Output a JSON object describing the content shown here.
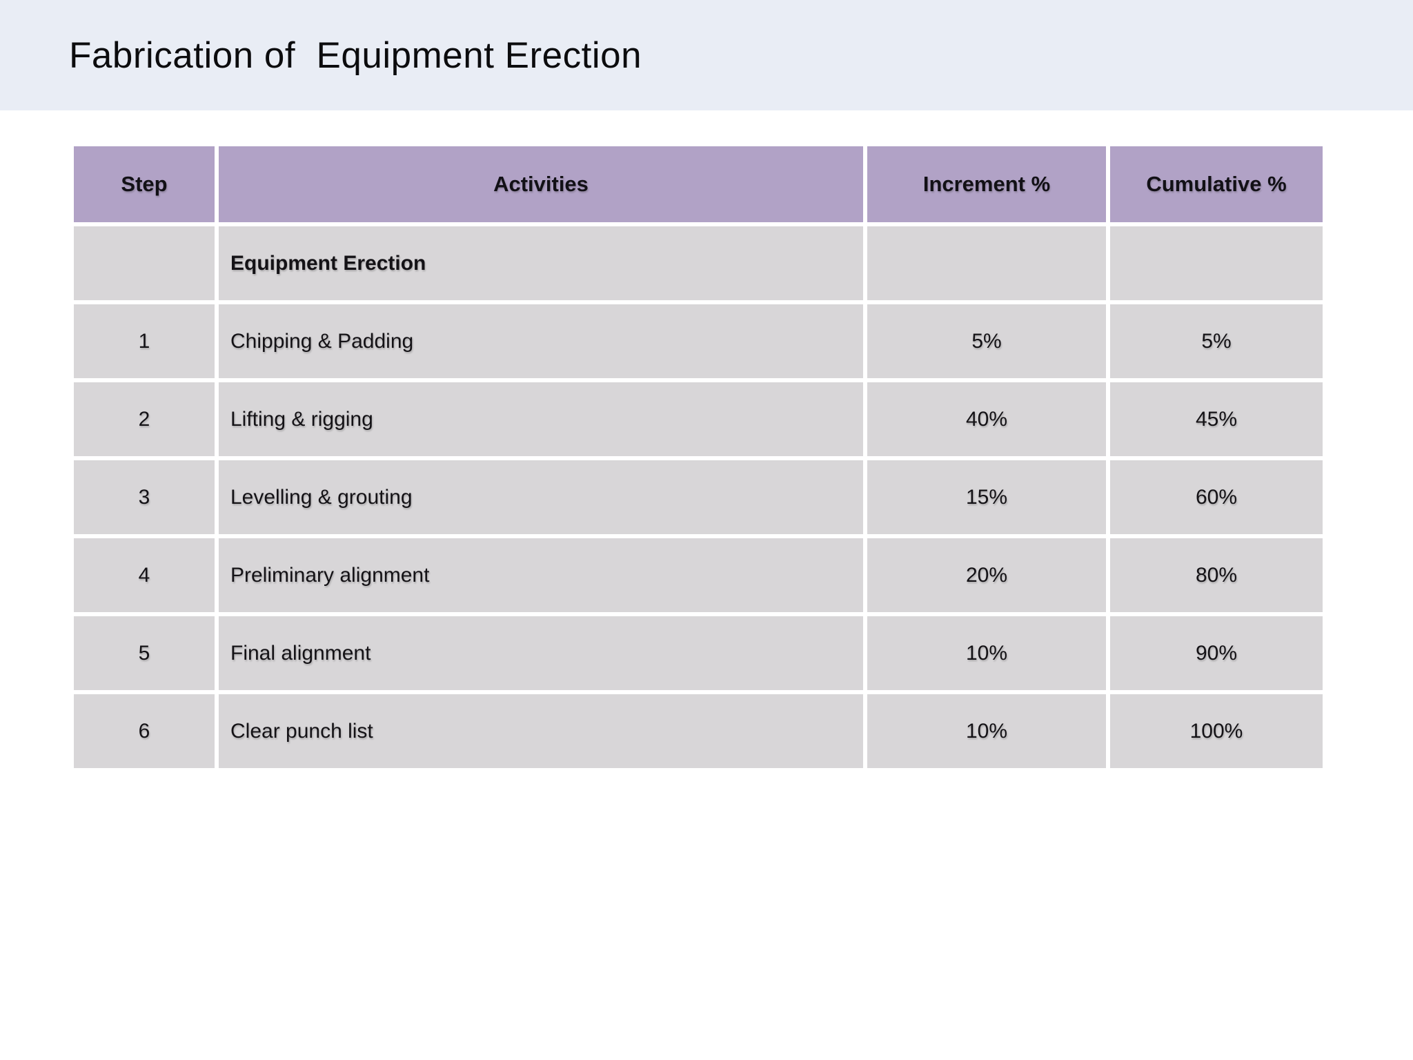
{
  "title": "Fabrication of  Equipment Erection",
  "colors": {
    "title_band_bg": "#e9edf5",
    "table_header_bg": "#b1a2c6",
    "table_row_bg": "#d8d6d8",
    "page_bg": "#ffffff",
    "text": "#141216"
  },
  "table": {
    "headers": [
      "Step",
      "Activities",
      "Increment %",
      "Cumulative %"
    ],
    "rows": [
      {
        "step": "",
        "activity": "Equipment Erection",
        "activity_bold": true,
        "increment": "",
        "cumulative": ""
      },
      {
        "step": "1",
        "activity": "Chipping & Padding",
        "activity_bold": false,
        "increment": "5%",
        "cumulative": "5%"
      },
      {
        "step": "2",
        "activity": "Lifting & rigging",
        "activity_bold": false,
        "increment": "40%",
        "cumulative": "45%"
      },
      {
        "step": "3",
        "activity": "Levelling & grouting",
        "activity_bold": false,
        "increment": "15%",
        "cumulative": "60%"
      },
      {
        "step": "4",
        "activity": "Preliminary alignment",
        "activity_bold": false,
        "increment": "20%",
        "cumulative": "80%"
      },
      {
        "step": "5",
        "activity": "Final alignment",
        "activity_bold": false,
        "increment": "10%",
        "cumulative": "90%"
      },
      {
        "step": "6",
        "activity": "Clear punch list",
        "activity_bold": false,
        "increment": "10%",
        "cumulative": "100%"
      }
    ]
  }
}
